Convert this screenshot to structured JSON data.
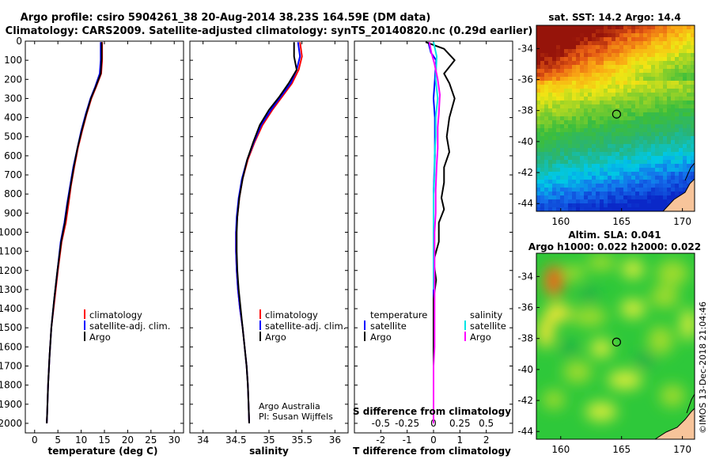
{
  "header": {
    "title_line1": "Argo profile: csiro 5904261_38 20-Aug-2014 38.23S 164.59E (DM data)",
    "title_line2": "Climatology: CARS2009. Satellite-adjusted climatology: synTS_20140820.nc (0.29d earlier)"
  },
  "credits": {
    "line1": "Argo Australia",
    "line2": "PI: Susan Wijffels",
    "stamp": "©IMOS 13-Dec-2018 21:04:46"
  },
  "colors": {
    "climatology": "#ff0000",
    "satellite_adj": "#0000ff",
    "argo": "#000000",
    "satellite": "#00e5e5",
    "salinity_argo": "#ff00ff",
    "land": "#f7c49a"
  },
  "chart_data": [
    {
      "id": "temperature",
      "type": "line",
      "xlabel": "temperature (deg C)",
      "ylabel": "",
      "xlim": [
        -2,
        32
      ],
      "ylim": [
        2050,
        0
      ],
      "xticks": [
        0,
        5,
        10,
        15,
        20,
        25,
        30
      ],
      "yticks": [
        0,
        100,
        200,
        300,
        400,
        500,
        600,
        700,
        800,
        900,
        1000,
        1100,
        1200,
        1300,
        1400,
        1500,
        1600,
        1700,
        1800,
        1900,
        2000
      ],
      "legend": [
        "climatology",
        "satellite-adj. clim.",
        "Argo"
      ],
      "series": [
        {
          "name": "climatology",
          "color": "#ff0000",
          "points": [
            [
              14.5,
              5
            ],
            [
              14.5,
              100
            ],
            [
              14.3,
              170
            ],
            [
              13.2,
              240
            ],
            [
              12.2,
              300
            ],
            [
              11.2,
              380
            ],
            [
              10.2,
              470
            ],
            [
              9.3,
              560
            ],
            [
              8.5,
              660
            ],
            [
              7.8,
              760
            ],
            [
              7.3,
              850
            ],
            [
              6.7,
              950
            ],
            [
              5.8,
              1050
            ],
            [
              5.0,
              1200
            ],
            [
              4.3,
              1350
            ],
            [
              3.6,
              1500
            ],
            [
              3.2,
              1650
            ],
            [
              2.9,
              1800
            ],
            [
              2.7,
              1950
            ],
            [
              2.6,
              2000
            ]
          ]
        },
        {
          "name": "satellite-adj. clim.",
          "color": "#0000ff",
          "points": [
            [
              14.2,
              5
            ],
            [
              14.2,
              100
            ],
            [
              14.0,
              170
            ],
            [
              13.0,
              240
            ],
            [
              12.0,
              300
            ],
            [
              11.0,
              380
            ],
            [
              10.0,
              470
            ],
            [
              9.2,
              560
            ],
            [
              8.3,
              660
            ],
            [
              7.6,
              760
            ],
            [
              7.0,
              850
            ],
            [
              6.4,
              950
            ],
            [
              5.6,
              1050
            ],
            [
              4.9,
              1200
            ],
            [
              4.2,
              1350
            ],
            [
              3.6,
              1500
            ],
            [
              3.2,
              1650
            ],
            [
              2.9,
              1800
            ],
            [
              2.7,
              1950
            ],
            [
              2.6,
              2000
            ]
          ]
        },
        {
          "name": "Argo",
          "color": "#000000",
          "points": [
            [
              14.4,
              5
            ],
            [
              14.4,
              90
            ],
            [
              14.2,
              170
            ],
            [
              13.1,
              240
            ],
            [
              12.1,
              300
            ],
            [
              11.1,
              380
            ],
            [
              10.1,
              470
            ],
            [
              9.2,
              560
            ],
            [
              8.4,
              660
            ],
            [
              7.7,
              760
            ],
            [
              7.1,
              850
            ],
            [
              6.5,
              950
            ],
            [
              5.7,
              1050
            ],
            [
              4.9,
              1200
            ],
            [
              4.2,
              1350
            ],
            [
              3.6,
              1500
            ],
            [
              3.2,
              1650
            ],
            [
              2.9,
              1800
            ],
            [
              2.7,
              1950
            ],
            [
              2.6,
              2000
            ]
          ]
        }
      ]
    },
    {
      "id": "salinity",
      "type": "line",
      "xlabel": "salinity",
      "xlim": [
        33.8,
        36.2
      ],
      "ylim": [
        2050,
        0
      ],
      "xticks": [
        34,
        34.5,
        35,
        35.5,
        36
      ],
      "xticklabels": [
        "34",
        "34.5",
        "35",
        "35.5",
        "36"
      ],
      "legend": [
        "climatology",
        "satellite-adj. clim.",
        "Argo"
      ],
      "series": [
        {
          "name": "climatology",
          "color": "#ff0000",
          "points": [
            [
              35.47,
              5
            ],
            [
              35.5,
              80
            ],
            [
              35.45,
              150
            ],
            [
              35.35,
              220
            ],
            [
              35.2,
              290
            ],
            [
              35.05,
              360
            ],
            [
              34.9,
              440
            ],
            [
              34.78,
              530
            ],
            [
              34.68,
              620
            ],
            [
              34.6,
              720
            ],
            [
              34.55,
              820
            ],
            [
              34.52,
              920
            ],
            [
              34.5,
              1000
            ],
            [
              34.5,
              1100
            ],
            [
              34.51,
              1200
            ],
            [
              34.53,
              1300
            ],
            [
              34.56,
              1400
            ],
            [
              34.6,
              1500
            ],
            [
              34.63,
              1600
            ],
            [
              34.66,
              1700
            ],
            [
              34.68,
              1800
            ],
            [
              34.69,
              1900
            ],
            [
              34.7,
              2000
            ]
          ]
        },
        {
          "name": "satellite-adj. clim.",
          "color": "#0000ff",
          "points": [
            [
              35.44,
              5
            ],
            [
              35.47,
              80
            ],
            [
              35.42,
              150
            ],
            [
              35.33,
              220
            ],
            [
              35.18,
              290
            ],
            [
              35.03,
              360
            ],
            [
              34.88,
              440
            ],
            [
              34.77,
              530
            ],
            [
              34.67,
              620
            ],
            [
              34.59,
              720
            ],
            [
              34.54,
              820
            ],
            [
              34.51,
              920
            ],
            [
              34.5,
              1000
            ],
            [
              34.5,
              1100
            ],
            [
              34.51,
              1200
            ],
            [
              34.53,
              1300
            ],
            [
              34.56,
              1400
            ],
            [
              34.6,
              1500
            ],
            [
              34.63,
              1600
            ],
            [
              34.66,
              1700
            ],
            [
              34.68,
              1800
            ],
            [
              34.69,
              1900
            ],
            [
              34.7,
              2000
            ]
          ]
        },
        {
          "name": "Argo",
          "color": "#000000",
          "points": [
            [
              35.38,
              5
            ],
            [
              35.38,
              80
            ],
            [
              35.42,
              150
            ],
            [
              35.3,
              220
            ],
            [
              35.16,
              290
            ],
            [
              35.0,
              360
            ],
            [
              34.86,
              440
            ],
            [
              34.76,
              530
            ],
            [
              34.67,
              620
            ],
            [
              34.6,
              720
            ],
            [
              34.55,
              820
            ],
            [
              34.52,
              920
            ],
            [
              34.51,
              1000
            ],
            [
              34.51,
              1100
            ],
            [
              34.52,
              1200
            ],
            [
              34.54,
              1300
            ],
            [
              34.57,
              1400
            ],
            [
              34.6,
              1500
            ],
            [
              34.63,
              1600
            ],
            [
              34.66,
              1700
            ],
            [
              34.68,
              1800
            ],
            [
              34.69,
              1900
            ],
            [
              34.7,
              2000
            ]
          ]
        }
      ]
    },
    {
      "id": "differences",
      "type": "line",
      "xlabel": "T difference from climatology",
      "top_xlabel": "S difference from climatology",
      "xlim": [
        -3,
        3
      ],
      "ylim": [
        2050,
        0
      ],
      "xticks": [
        -2,
        -1,
        0,
        1,
        2
      ],
      "top_xticks": [
        -0.5,
        -0.25,
        0,
        0.25,
        0.5
      ],
      "top_xticklabels": [
        "-0.5",
        "-0.25",
        "0",
        "0.25",
        "0.5"
      ],
      "legend_temperature": {
        "title": "temperature",
        "items": [
          "satellite",
          "Argo"
        ]
      },
      "legend_salinity": {
        "title": "salinity",
        "items": [
          "satellite",
          "Argo"
        ]
      },
      "series": [
        {
          "name": "temperature satellite",
          "color": "#0000ff",
          "points": [
            [
              -0.2,
              5
            ],
            [
              -0.1,
              60
            ],
            [
              0.1,
              100
            ],
            [
              0.05,
              200
            ],
            [
              0.0,
              300
            ],
            [
              0.05,
              400
            ],
            [
              0.05,
              600
            ],
            [
              0.0,
              800
            ],
            [
              0.0,
              1000
            ],
            [
              0.0,
              1200
            ],
            [
              0.0,
              1400
            ],
            [
              0.0,
              1600
            ],
            [
              0.0,
              1800
            ],
            [
              0.0,
              2000
            ]
          ]
        },
        {
          "name": "temperature Argo",
          "color": "#000000",
          "points": [
            [
              -0.3,
              5
            ],
            [
              0.4,
              40
            ],
            [
              0.8,
              100
            ],
            [
              0.4,
              170
            ],
            [
              0.6,
              220
            ],
            [
              0.8,
              300
            ],
            [
              0.6,
              400
            ],
            [
              0.5,
              500
            ],
            [
              0.6,
              580
            ],
            [
              0.4,
              660
            ],
            [
              0.4,
              740
            ],
            [
              0.3,
              820
            ],
            [
              0.4,
              880
            ],
            [
              0.2,
              950
            ],
            [
              0.2,
              1050
            ],
            [
              0.0,
              1150
            ],
            [
              0.1,
              1250
            ],
            [
              0.0,
              1350
            ],
            [
              0.0,
              1500
            ],
            [
              0.0,
              1650
            ],
            [
              0.0,
              1800
            ],
            [
              0.0,
              2000
            ]
          ]
        },
        {
          "name": "salinity satellite",
          "color": "#00e5e5",
          "points": [
            [
              0.0,
              5
            ],
            [
              0.03,
              80
            ],
            [
              0.02,
              200
            ],
            [
              0.04,
              300
            ],
            [
              0.02,
              400
            ],
            [
              0.02,
              500
            ],
            [
              0.01,
              600
            ],
            [
              0.01,
              700
            ],
            [
              0.0,
              800
            ],
            [
              0.0,
              900
            ],
            [
              0.0,
              1000
            ],
            [
              0.0,
              1100
            ],
            [
              0.0,
              1200
            ],
            [
              0.0,
              1300
            ]
          ]
        },
        {
          "name": "salinity Argo",
          "color": "#ff00ff",
          "points": [
            [
              -0.04,
              5
            ],
            [
              -0.02,
              60
            ],
            [
              0.01,
              120
            ],
            [
              0.04,
              200
            ],
            [
              0.06,
              280
            ],
            [
              0.05,
              380
            ],
            [
              0.04,
              450
            ],
            [
              0.04,
              560
            ],
            [
              0.03,
              650
            ],
            [
              0.02,
              780
            ],
            [
              0.02,
              900
            ],
            [
              0.01,
              1000
            ],
            [
              0.01,
              1100
            ],
            [
              0.01,
              1200
            ],
            [
              0.01,
              1300
            ],
            [
              0.01,
              1400
            ],
            [
              0.01,
              1500
            ],
            [
              0.01,
              1600
            ],
            [
              0.0,
              1700
            ],
            [
              0.0,
              1800
            ],
            [
              0.0,
              1900
            ],
            [
              0.0,
              2000
            ]
          ]
        }
      ]
    },
    {
      "id": "sst_map",
      "type": "heatmap",
      "title": "sat. SST: 14.2 Argo: 14.4",
      "xlim": [
        158,
        171
      ],
      "ylim": [
        -44.5,
        -32.5
      ],
      "xticks": [
        160,
        165,
        170
      ],
      "yticks": [
        -34,
        -36,
        -38,
        -40,
        -42,
        -44
      ],
      "marker": {
        "lon": 164.59,
        "lat": -38.23
      }
    },
    {
      "id": "sla_map",
      "type": "heatmap",
      "title": "Altim. SLA: 0.041",
      "subtitle": "Argo h1000: 0.022 h2000: 0.022",
      "xlim": [
        158,
        171
      ],
      "ylim": [
        -44.5,
        -32.5
      ],
      "xticks": [
        160,
        165,
        170
      ],
      "yticks": [
        -34,
        -36,
        -38,
        -40,
        -42,
        -44
      ],
      "marker": {
        "lon": 164.59,
        "lat": -38.23
      }
    }
  ]
}
